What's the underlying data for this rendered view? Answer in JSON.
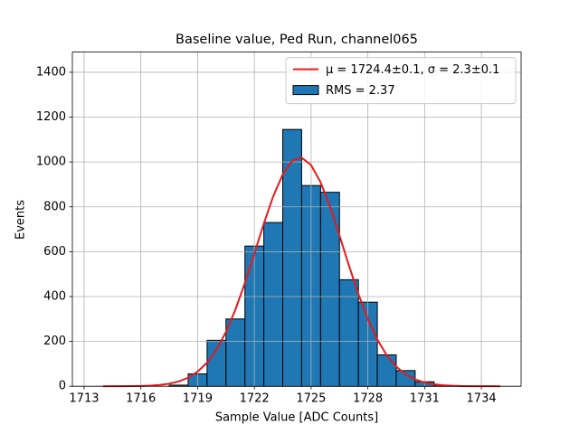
{
  "chart_data": {
    "type": "histogram",
    "title": "Baseline value, Ped Run, channel065",
    "xlabel": "Sample Value [ADC Counts]",
    "ylabel": "Events",
    "bins": [
      1717.5,
      1718.5,
      1719.5,
      1720.5,
      1721.5,
      1722.5,
      1723.5,
      1724.5,
      1725.5,
      1726.5,
      1727.5,
      1728.5,
      1729.5,
      1730.5,
      1731.5,
      1732.5
    ],
    "values": [
      5,
      55,
      205,
      300,
      625,
      730,
      1145,
      895,
      865,
      475,
      375,
      140,
      70,
      20,
      3
    ],
    "name": "RMS = 2.37",
    "color": "#1f77b4",
    "edgecolor": "#000000",
    "fit": {
      "name": "μ = 1724.4±0.1, σ = 2.3±0.1",
      "color": "#e41a1c",
      "x": [
        1714.0,
        1714.5,
        1715.0,
        1715.5,
        1716.0,
        1716.5,
        1717.0,
        1717.5,
        1718.0,
        1718.5,
        1719.0,
        1719.5,
        1720.0,
        1720.5,
        1721.0,
        1721.5,
        1722.0,
        1722.5,
        1723.0,
        1723.5,
        1724.0,
        1724.5,
        1725.0,
        1725.5,
        1726.0,
        1726.5,
        1727.0,
        1727.5,
        1728.0,
        1728.5,
        1729.0,
        1729.5,
        1730.0,
        1730.5,
        1731.0,
        1731.5,
        1732.0,
        1732.5,
        1733.0,
        1733.5,
        1734.0,
        1734.5,
        1735.0
      ],
      "values": [
        0.0,
        0.1,
        0.2,
        0.6,
        1.3,
        2.8,
        5.8,
        11.3,
        21.2,
        38.0,
        64.8,
        105.5,
        163.6,
        242.3,
        342.0,
        460.6,
        591.8,
        725.1,
        847.5,
        944.8,
        1004.7,
        1019.0,
        985.9,
        909.7,
        800.7,
        672.4,
        538.4,
        411.3,
        299.7,
        208.3,
        138.0,
        87.3,
        52.6,
        30.3,
        16.6,
        8.7,
        4.3,
        2.1,
        0.9,
        0.4,
        0.2,
        0.1,
        0.0
      ]
    },
    "xlim": [
      1712.38,
      1736.1
    ],
    "ylim": [
      0,
      1490
    ],
    "xticks": [
      1713,
      1716,
      1719,
      1722,
      1725,
      1728,
      1731,
      1734
    ],
    "yticks": [
      0,
      200,
      400,
      600,
      800,
      1000,
      1200,
      1400
    ],
    "grid": true,
    "legend": "upper right"
  }
}
